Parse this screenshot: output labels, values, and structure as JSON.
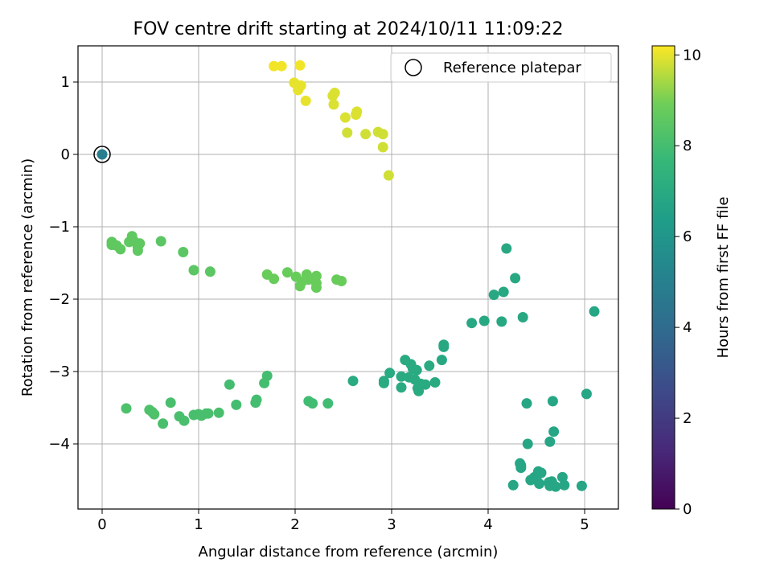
{
  "chart_data": {
    "type": "scatter",
    "title": "FOV centre drift starting at 2024/10/11 11:09:22",
    "xlabel": "Angular distance from reference (arcmin)",
    "ylabel": "Rotation from reference (arcmin)",
    "xlim": [
      -0.25,
      5.35
    ],
    "ylim": [
      -4.9,
      1.5
    ],
    "xticks": [
      0,
      1,
      2,
      3,
      4,
      5
    ],
    "yticks": [
      1,
      0,
      -1,
      -2,
      -3,
      -4
    ],
    "xtick_labels": [
      "0",
      "1",
      "2",
      "3",
      "4",
      "5"
    ],
    "ytick_labels": [
      "1",
      "0",
      "−1",
      "−2",
      "−3",
      "−4"
    ],
    "grid": true,
    "legend": {
      "label": "Reference platepar",
      "position": "top-right",
      "marker": "hollow-circle"
    },
    "colorbar": {
      "label": "Hours from first FF file",
      "colormap": "viridis",
      "range": [
        0,
        10.2
      ],
      "ticks": [
        0,
        2,
        4,
        6,
        8,
        10
      ],
      "tick_labels": [
        "0",
        "2",
        "4",
        "6",
        "8",
        "10"
      ]
    },
    "reference_point": {
      "x": 0,
      "y": 0
    },
    "points": [
      [
        0.0,
        0.0,
        4.9
      ],
      [
        1.78,
        1.22,
        10.1
      ],
      [
        1.86,
        1.22,
        10.1
      ],
      [
        2.05,
        1.23,
        10.1
      ],
      [
        1.99,
        0.99,
        10.0
      ],
      [
        2.04,
        0.93,
        10.0
      ],
      [
        2.06,
        0.95,
        10.0
      ],
      [
        2.03,
        0.89,
        10.0
      ],
      [
        2.11,
        0.74,
        10.0
      ],
      [
        2.39,
        0.81,
        9.9
      ],
      [
        2.41,
        0.85,
        9.9
      ],
      [
        2.4,
        0.69,
        9.9
      ],
      [
        2.52,
        0.51,
        9.9
      ],
      [
        2.64,
        0.59,
        9.9
      ],
      [
        2.63,
        0.55,
        9.9
      ],
      [
        2.54,
        0.3,
        9.8
      ],
      [
        2.73,
        0.28,
        9.8
      ],
      [
        2.86,
        0.31,
        9.8
      ],
      [
        2.91,
        0.28,
        9.8
      ],
      [
        2.91,
        0.1,
        9.8
      ],
      [
        2.97,
        -0.29,
        9.8
      ],
      [
        0.1,
        -1.21,
        8.6
      ],
      [
        0.1,
        -1.25,
        8.6
      ],
      [
        0.15,
        -1.26,
        8.6
      ],
      [
        0.19,
        -1.31,
        8.6
      ],
      [
        0.28,
        -1.21,
        8.6
      ],
      [
        0.31,
        -1.13,
        8.6
      ],
      [
        0.33,
        -1.2,
        8.6
      ],
      [
        0.37,
        -1.28,
        8.6
      ],
      [
        0.39,
        -1.23,
        8.6
      ],
      [
        0.37,
        -1.33,
        8.6
      ],
      [
        0.61,
        -1.2,
        8.5
      ],
      [
        0.84,
        -1.35,
        8.5
      ],
      [
        0.95,
        -1.6,
        8.5
      ],
      [
        1.12,
        -1.62,
        8.5
      ],
      [
        1.71,
        -1.66,
        8.8
      ],
      [
        1.78,
        -1.72,
        8.8
      ],
      [
        1.92,
        -1.63,
        8.8
      ],
      [
        2.01,
        -1.69,
        8.8
      ],
      [
        2.05,
        -1.82,
        8.8
      ],
      [
        2.07,
        -1.76,
        8.8
      ],
      [
        2.12,
        -1.66,
        8.8
      ],
      [
        2.14,
        -1.73,
        8.8
      ],
      [
        2.22,
        -1.68,
        8.8
      ],
      [
        2.22,
        -1.78,
        8.8
      ],
      [
        2.22,
        -1.84,
        8.8
      ],
      [
        2.43,
        -1.73,
        8.8
      ],
      [
        2.48,
        -1.75,
        8.8
      ],
      [
        0.25,
        -3.51,
        8.2
      ],
      [
        0.49,
        -3.53,
        8.2
      ],
      [
        0.52,
        -3.56,
        8.2
      ],
      [
        0.54,
        -3.59,
        8.2
      ],
      [
        0.63,
        -3.72,
        8.1
      ],
      [
        0.71,
        -3.43,
        8.1
      ],
      [
        0.8,
        -3.62,
        8.1
      ],
      [
        0.85,
        -3.68,
        8.1
      ],
      [
        0.95,
        -3.6,
        8.1
      ],
      [
        1.0,
        -3.59,
        8.1
      ],
      [
        1.03,
        -3.61,
        8.1
      ],
      [
        1.08,
        -3.58,
        8.1
      ],
      [
        1.1,
        -3.58,
        8.1
      ],
      [
        1.21,
        -3.57,
        8.1
      ],
      [
        1.32,
        -3.18,
        8.0
      ],
      [
        1.39,
        -3.46,
        8.0
      ],
      [
        1.59,
        -3.43,
        8.0
      ],
      [
        1.6,
        -3.39,
        8.0
      ],
      [
        1.68,
        -3.16,
        8.0
      ],
      [
        1.71,
        -3.06,
        8.0
      ],
      [
        2.14,
        -3.41,
        7.9
      ],
      [
        2.18,
        -3.44,
        7.9
      ],
      [
        2.34,
        -3.44,
        7.9
      ],
      [
        2.6,
        -3.13,
        7.0
      ],
      [
        2.92,
        -3.13,
        7.0
      ],
      [
        2.92,
        -3.16,
        7.0
      ],
      [
        2.98,
        -3.02,
        7.0
      ],
      [
        3.1,
        -3.22,
        7.0
      ],
      [
        3.1,
        -3.07,
        7.0
      ],
      [
        3.14,
        -2.84,
        7.0
      ],
      [
        3.18,
        -3.08,
        7.0
      ],
      [
        3.2,
        -2.9,
        7.0
      ],
      [
        3.22,
        -2.96,
        7.0
      ],
      [
        3.24,
        -3.11,
        7.0
      ],
      [
        3.26,
        -2.98,
        7.0
      ],
      [
        3.27,
        -3.23,
        7.0
      ],
      [
        3.28,
        -3.27,
        7.0
      ],
      [
        3.3,
        -3.17,
        7.0
      ],
      [
        3.35,
        -3.18,
        7.0
      ],
      [
        3.39,
        -2.92,
        7.0
      ],
      [
        3.45,
        -3.15,
        7.0
      ],
      [
        3.52,
        -2.84,
        6.9
      ],
      [
        3.54,
        -2.66,
        6.9
      ],
      [
        3.54,
        -2.63,
        6.9
      ],
      [
        3.83,
        -2.33,
        6.9
      ],
      [
        3.96,
        -2.3,
        6.9
      ],
      [
        4.06,
        -1.94,
        6.9
      ],
      [
        4.14,
        -2.31,
        6.9
      ],
      [
        4.16,
        -1.9,
        6.9
      ],
      [
        4.19,
        -1.3,
        6.9
      ],
      [
        4.28,
        -1.71,
        6.9
      ],
      [
        4.36,
        -2.25,
        6.9
      ],
      [
        5.1,
        -2.17,
        6.8
      ],
      [
        4.26,
        -4.57,
        6.8
      ],
      [
        4.33,
        -4.27,
        6.8
      ],
      [
        4.34,
        -4.3,
        6.8
      ],
      [
        4.34,
        -4.33,
        6.8
      ],
      [
        4.4,
        -3.44,
        6.8
      ],
      [
        4.41,
        -4.0,
        6.8
      ],
      [
        4.44,
        -4.5,
        6.8
      ],
      [
        4.48,
        -4.46,
        6.8
      ],
      [
        4.5,
        -4.49,
        6.8
      ],
      [
        4.52,
        -4.38,
        6.8
      ],
      [
        4.53,
        -4.55,
        6.8
      ],
      [
        4.55,
        -4.4,
        6.8
      ],
      [
        4.63,
        -4.53,
        6.8
      ],
      [
        4.64,
        -3.97,
        6.8
      ],
      [
        4.64,
        -4.58,
        6.8
      ],
      [
        4.66,
        -4.52,
        6.8
      ],
      [
        4.67,
        -3.41,
        6.8
      ],
      [
        4.68,
        -3.83,
        6.8
      ],
      [
        4.7,
        -4.59,
        6.8
      ],
      [
        4.77,
        -4.46,
        6.8
      ],
      [
        4.79,
        -4.57,
        6.8
      ],
      [
        4.97,
        -4.58,
        6.8
      ],
      [
        5.02,
        -3.31,
        6.8
      ]
    ]
  }
}
